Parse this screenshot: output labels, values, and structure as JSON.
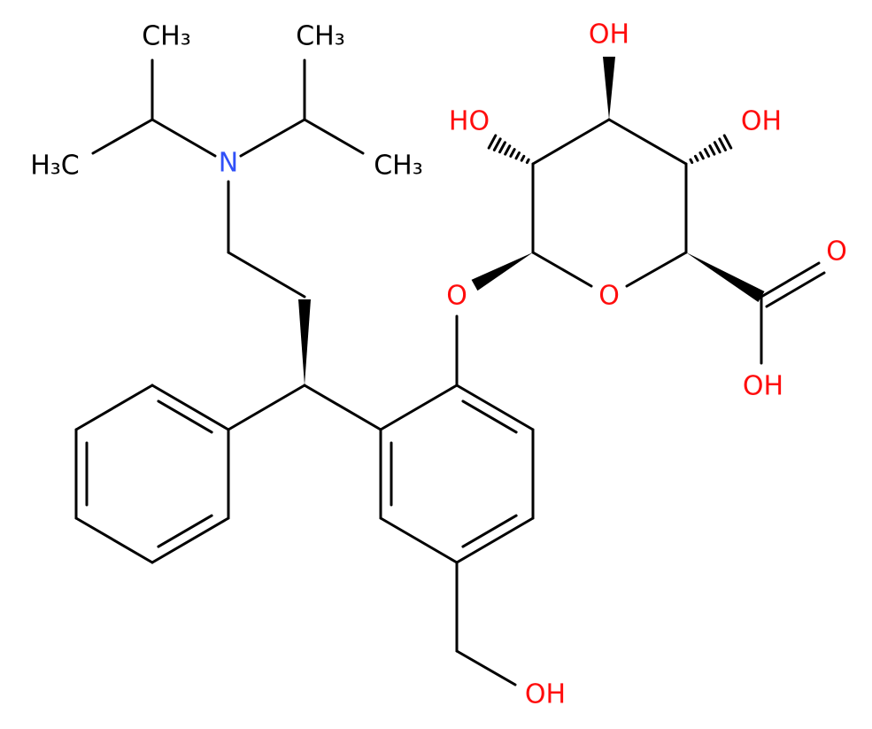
{
  "nodes": [
    {
      "label": "CH₃"
    },
    {
      "label": "CH₃"
    },
    {
      "label": "H₃C"
    },
    {
      "label": "CH₃"
    },
    {
      "label": "N"
    },
    {
      "label": "HO"
    },
    {
      "label": "OH"
    },
    {
      "label": "OH"
    },
    {
      "label": "O"
    },
    {
      "label": "O"
    },
    {
      "label": "O"
    },
    {
      "label": "OH"
    },
    {
      "label": "OH"
    }
  ]
}
